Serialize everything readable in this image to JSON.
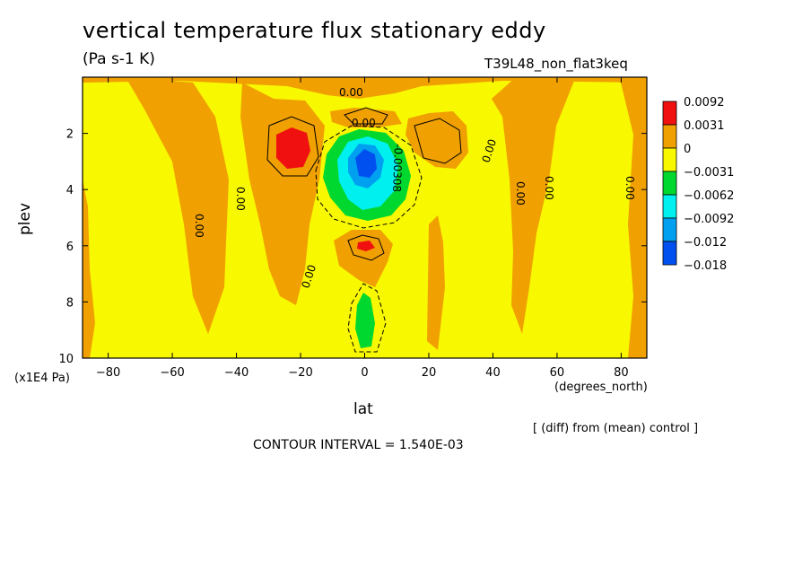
{
  "title": "vertical temperature flux stationary eddy",
  "units_label": "(Pa s-1 K)",
  "experiment": "T39L48_non_flat3keq",
  "x_axis_label": "lat",
  "x_units": "(degrees_north)",
  "y_axis_label": "plev",
  "y_units": "(x1E4 Pa)",
  "diff_note": "[ (diff) from (mean) control ]",
  "contour_interval": "CONTOUR INTERVAL = 1.540E-03",
  "contour_labels": [
    "0.00",
    "0.00",
    "0.00",
    "0.00",
    "0.00",
    "0.00",
    "0.00",
    "0.00",
    "0.00",
    "-0.00308"
  ],
  "colors": {
    "red": "#f01010",
    "orange": "#f0a000",
    "yellow": "#f8f800",
    "green": "#00d830",
    "cyan": "#00f0f0",
    "skyblue": "#00a0f0",
    "blue": "#0050f0"
  },
  "chart_data": {
    "type": "heatmap",
    "plot": "filled contour (latitude-pressure cross-section)",
    "x": {
      "name": "lat",
      "units": "degrees_north",
      "range": [
        -88,
        88
      ],
      "ticks": [
        -80,
        -60,
        -40,
        -20,
        0,
        20,
        40,
        60,
        80
      ],
      "tick_labels": [
        "-80",
        "-60",
        "-40",
        "-20",
        "0",
        "20",
        "40",
        "60",
        "80"
      ]
    },
    "y": {
      "name": "plev",
      "units": "x1E4 Pa",
      "range": [
        10,
        0
      ],
      "inverted": true,
      "ticks": [
        2,
        4,
        6,
        8,
        10
      ],
      "tick_labels": [
        "2",
        "4",
        "6",
        "8",
        "10"
      ]
    },
    "contour_interval": 0.00154,
    "legend": {
      "placement": "right",
      "levels": [
        "0.0092",
        "0.0031",
        "0",
        "−0.0031",
        "−0.0062",
        "−0.0092",
        "−0.012",
        "−0.018"
      ],
      "colors": [
        "#f01010",
        "#f0a000",
        "#f8f800",
        "#00d830",
        "#00f0f0",
        "#00a0f0",
        "#0050f0"
      ]
    },
    "features": [
      {
        "kind": "positive max",
        "lat": -23,
        "plev": 2.5,
        "band": "0.0031 to 0.0092"
      },
      {
        "kind": "positive max",
        "lat": 0,
        "plev": 6.0,
        "band": "0.0031 to 0.0092"
      },
      {
        "kind": "negative min",
        "lat": 0,
        "plev": 3.2,
        "band": "below -0.0092"
      },
      {
        "kind": "negative min",
        "lat": 0,
        "plev": 8.6,
        "band": "-0.0031 to -0.0062"
      },
      {
        "kind": "positive max",
        "lat": 25,
        "plev": 2.5,
        "band": "0 to 0.0031"
      }
    ]
  }
}
